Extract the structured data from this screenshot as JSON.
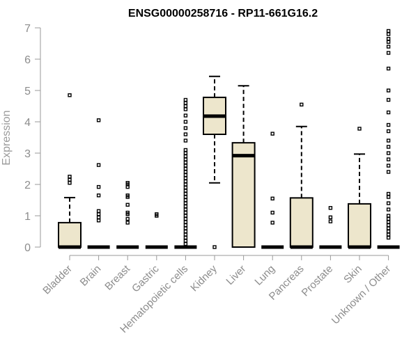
{
  "chart_data": {
    "type": "box",
    "title": "ENSG00000258716 - RP11-661G16.2",
    "ylabel": "Expression",
    "xlabel": "",
    "ylim": [
      0,
      7
    ],
    "yticks": [
      0,
      1,
      2,
      3,
      4,
      5,
      6,
      7
    ],
    "categories": [
      "Bladder",
      "Brain",
      "Breast",
      "Gastric",
      "Hematopoietic cells",
      "Kidney",
      "Liver",
      "Lung",
      "Pancreas",
      "Prostate",
      "Skin",
      "Unknown / Other"
    ],
    "boxes": [
      {
        "q1": 0,
        "median": 0,
        "q3": 0.78,
        "whisker_low": 0,
        "whisker_high": 1.58,
        "outliers": [
          2.05,
          2.15,
          2.25,
          4.85
        ]
      },
      {
        "q1": 0,
        "median": 0,
        "q3": 0,
        "whisker_low": 0,
        "whisker_high": 0,
        "outliers": [
          0.85,
          0.95,
          1.05,
          1.15,
          1.65,
          1.92,
          2.62,
          4.05
        ]
      },
      {
        "q1": 0,
        "median": 0,
        "q3": 0,
        "whisker_low": 0,
        "whisker_high": 0,
        "outliers": [
          0.78,
          0.9,
          1.05,
          1.1,
          1.35,
          1.6,
          1.65,
          1.92,
          2.0,
          2.05
        ]
      },
      {
        "q1": 0,
        "median": 0,
        "q3": 0,
        "whisker_low": 0,
        "whisker_high": 0,
        "outliers": [
          1.0,
          1.05
        ]
      },
      {
        "q1": 0,
        "median": 0,
        "q3": 0,
        "whisker_low": 0,
        "whisker_high": 0,
        "outliers": [
          0.1,
          0.2,
          0.3,
          0.4,
          0.5,
          0.6,
          0.7,
          0.8,
          0.9,
          1.0,
          1.1,
          1.2,
          1.3,
          1.4,
          1.5,
          1.6,
          1.7,
          1.8,
          1.9,
          2.0,
          2.1,
          2.2,
          2.3,
          2.4,
          2.5,
          2.6,
          2.7,
          2.8,
          2.9,
          3.0,
          3.1,
          3.4,
          3.6,
          3.8,
          4.0,
          4.2,
          4.4,
          4.5,
          4.6,
          4.7
        ]
      },
      {
        "q1": 3.6,
        "median": 4.18,
        "q3": 4.78,
        "whisker_low": 2.05,
        "whisker_high": 5.45,
        "outliers": [
          0
        ]
      },
      {
        "q1": 0,
        "median": 2.92,
        "q3": 3.33,
        "whisker_low": 0,
        "whisker_high": 5.15,
        "outliers": []
      },
      {
        "q1": 0,
        "median": 0,
        "q3": 0,
        "whisker_low": 0,
        "whisker_high": 0,
        "outliers": [
          0.78,
          1.1,
          1.55,
          3.62
        ]
      },
      {
        "q1": 0,
        "median": 0,
        "q3": 1.57,
        "whisker_low": 0,
        "whisker_high": 3.85,
        "outliers": [
          4.55
        ]
      },
      {
        "q1": 0,
        "median": 0,
        "q3": 0,
        "whisker_low": 0,
        "whisker_high": 0,
        "outliers": [
          0.82,
          0.95,
          1.25
        ]
      },
      {
        "q1": 0,
        "median": 0,
        "q3": 1.38,
        "whisker_low": 0,
        "whisker_high": 2.97,
        "outliers": [
          3.78
        ]
      },
      {
        "q1": 0,
        "median": 0,
        "q3": 0,
        "whisker_low": 0,
        "whisker_high": 0,
        "outliers": [
          0.3,
          0.4,
          0.5,
          0.6,
          0.7,
          0.8,
          0.9,
          1.0,
          1.2,
          1.4,
          1.6,
          1.7,
          2.4,
          2.6,
          2.8,
          3.0,
          3.2,
          3.4,
          3.7,
          3.9,
          4.3,
          4.7,
          5.0,
          5.7,
          6.2,
          6.4,
          6.55,
          6.65,
          6.8,
          6.9
        ]
      }
    ],
    "grid": false,
    "box_color": "#ede6cc"
  }
}
